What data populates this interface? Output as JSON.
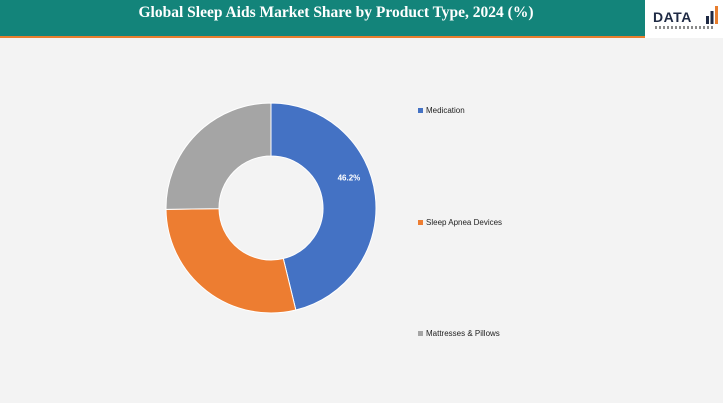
{
  "header": {
    "title": "Global Sleep Aids Market Share by Product Type, 2024 (%)",
    "logo_text": "DATA"
  },
  "colors": {
    "header_bg": "#13847a",
    "accent": "#e87e2e"
  },
  "chart_data": {
    "type": "pie",
    "subtype": "donut",
    "title": "Global Sleep Aids Market Share by Product Type, 2024 (%)",
    "series": [
      {
        "name": "Medication",
        "value": 46.2,
        "color": "#4472c4",
        "label": "46.2%"
      },
      {
        "name": "Sleep Apnea Devices",
        "value": 28.6,
        "color": "#ed7d31",
        "label": ""
      },
      {
        "name": "Mattresses & Pillows",
        "value": 25.2,
        "color": "#a5a5a5",
        "label": ""
      }
    ],
    "legend_position": "right"
  }
}
